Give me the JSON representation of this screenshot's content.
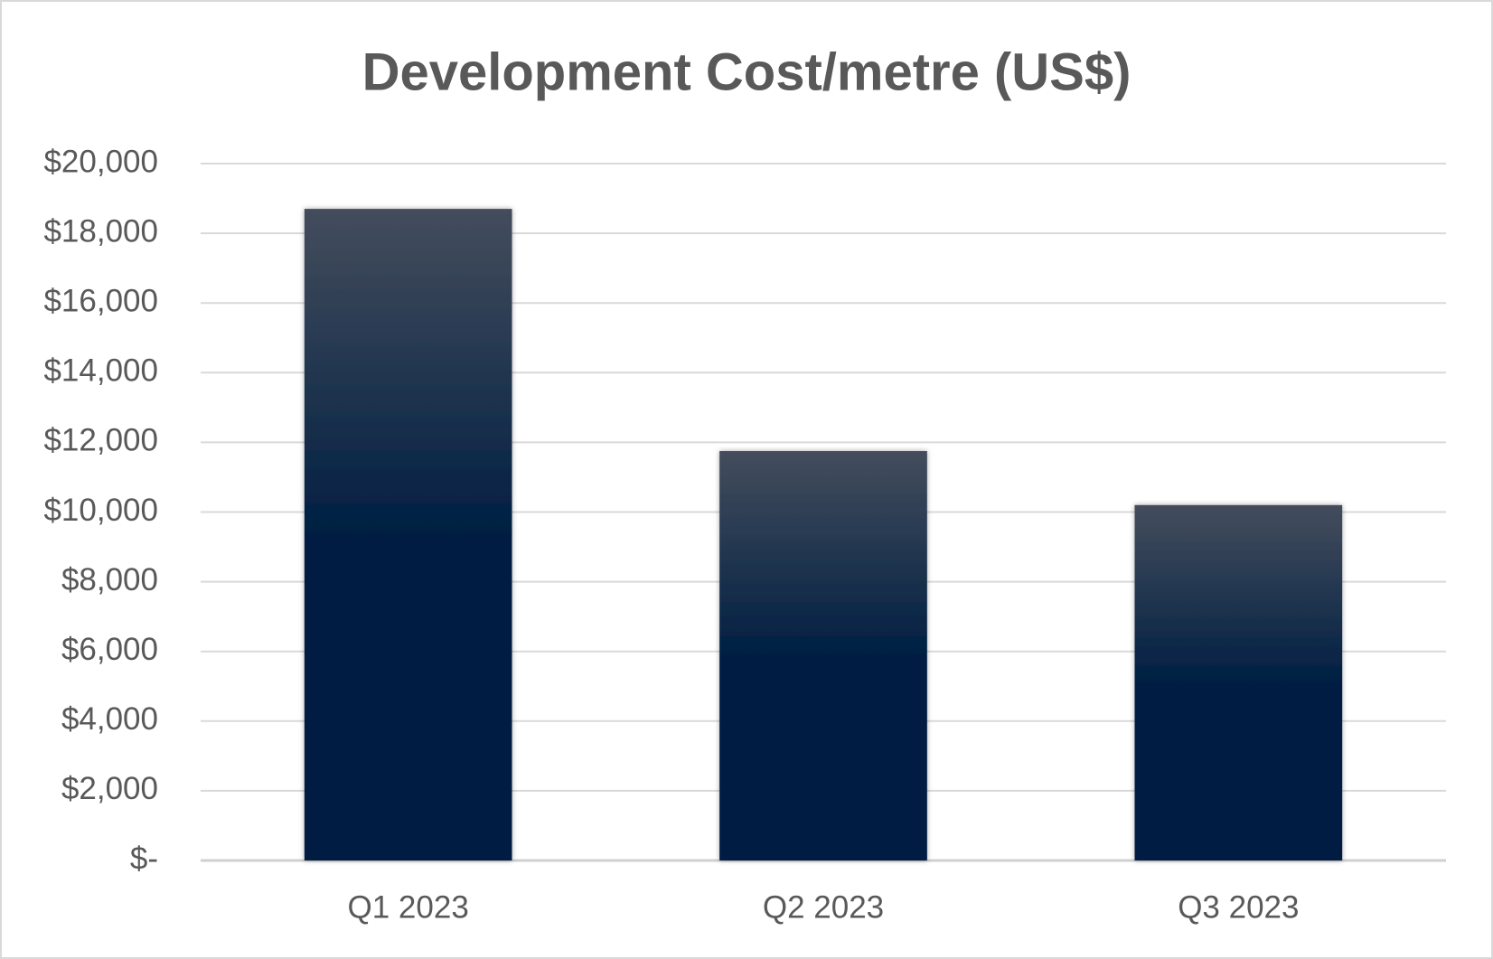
{
  "chart_data": {
    "type": "bar",
    "title": "Development Cost/metre (US$)",
    "categories": [
      "Q1 2023",
      "Q2 2023",
      "Q3 2023"
    ],
    "values": [
      18700,
      11750,
      10200
    ],
    "color": "#001f42",
    "ylim": [
      0,
      20000
    ],
    "yticks": [
      {
        "value": 0,
        "label": "$-"
      },
      {
        "value": 2000,
        "label": "$2,000"
      },
      {
        "value": 4000,
        "label": "$4,000"
      },
      {
        "value": 6000,
        "label": "$6,000"
      },
      {
        "value": 8000,
        "label": "$8,000"
      },
      {
        "value": 10000,
        "label": "$10,000"
      },
      {
        "value": 12000,
        "label": "$12,000"
      },
      {
        "value": 14000,
        "label": "$14,000"
      },
      {
        "value": 16000,
        "label": "$16,000"
      },
      {
        "value": 18000,
        "label": "$18,000"
      },
      {
        "value": 20000,
        "label": "$20,000"
      }
    ],
    "grid": true
  }
}
